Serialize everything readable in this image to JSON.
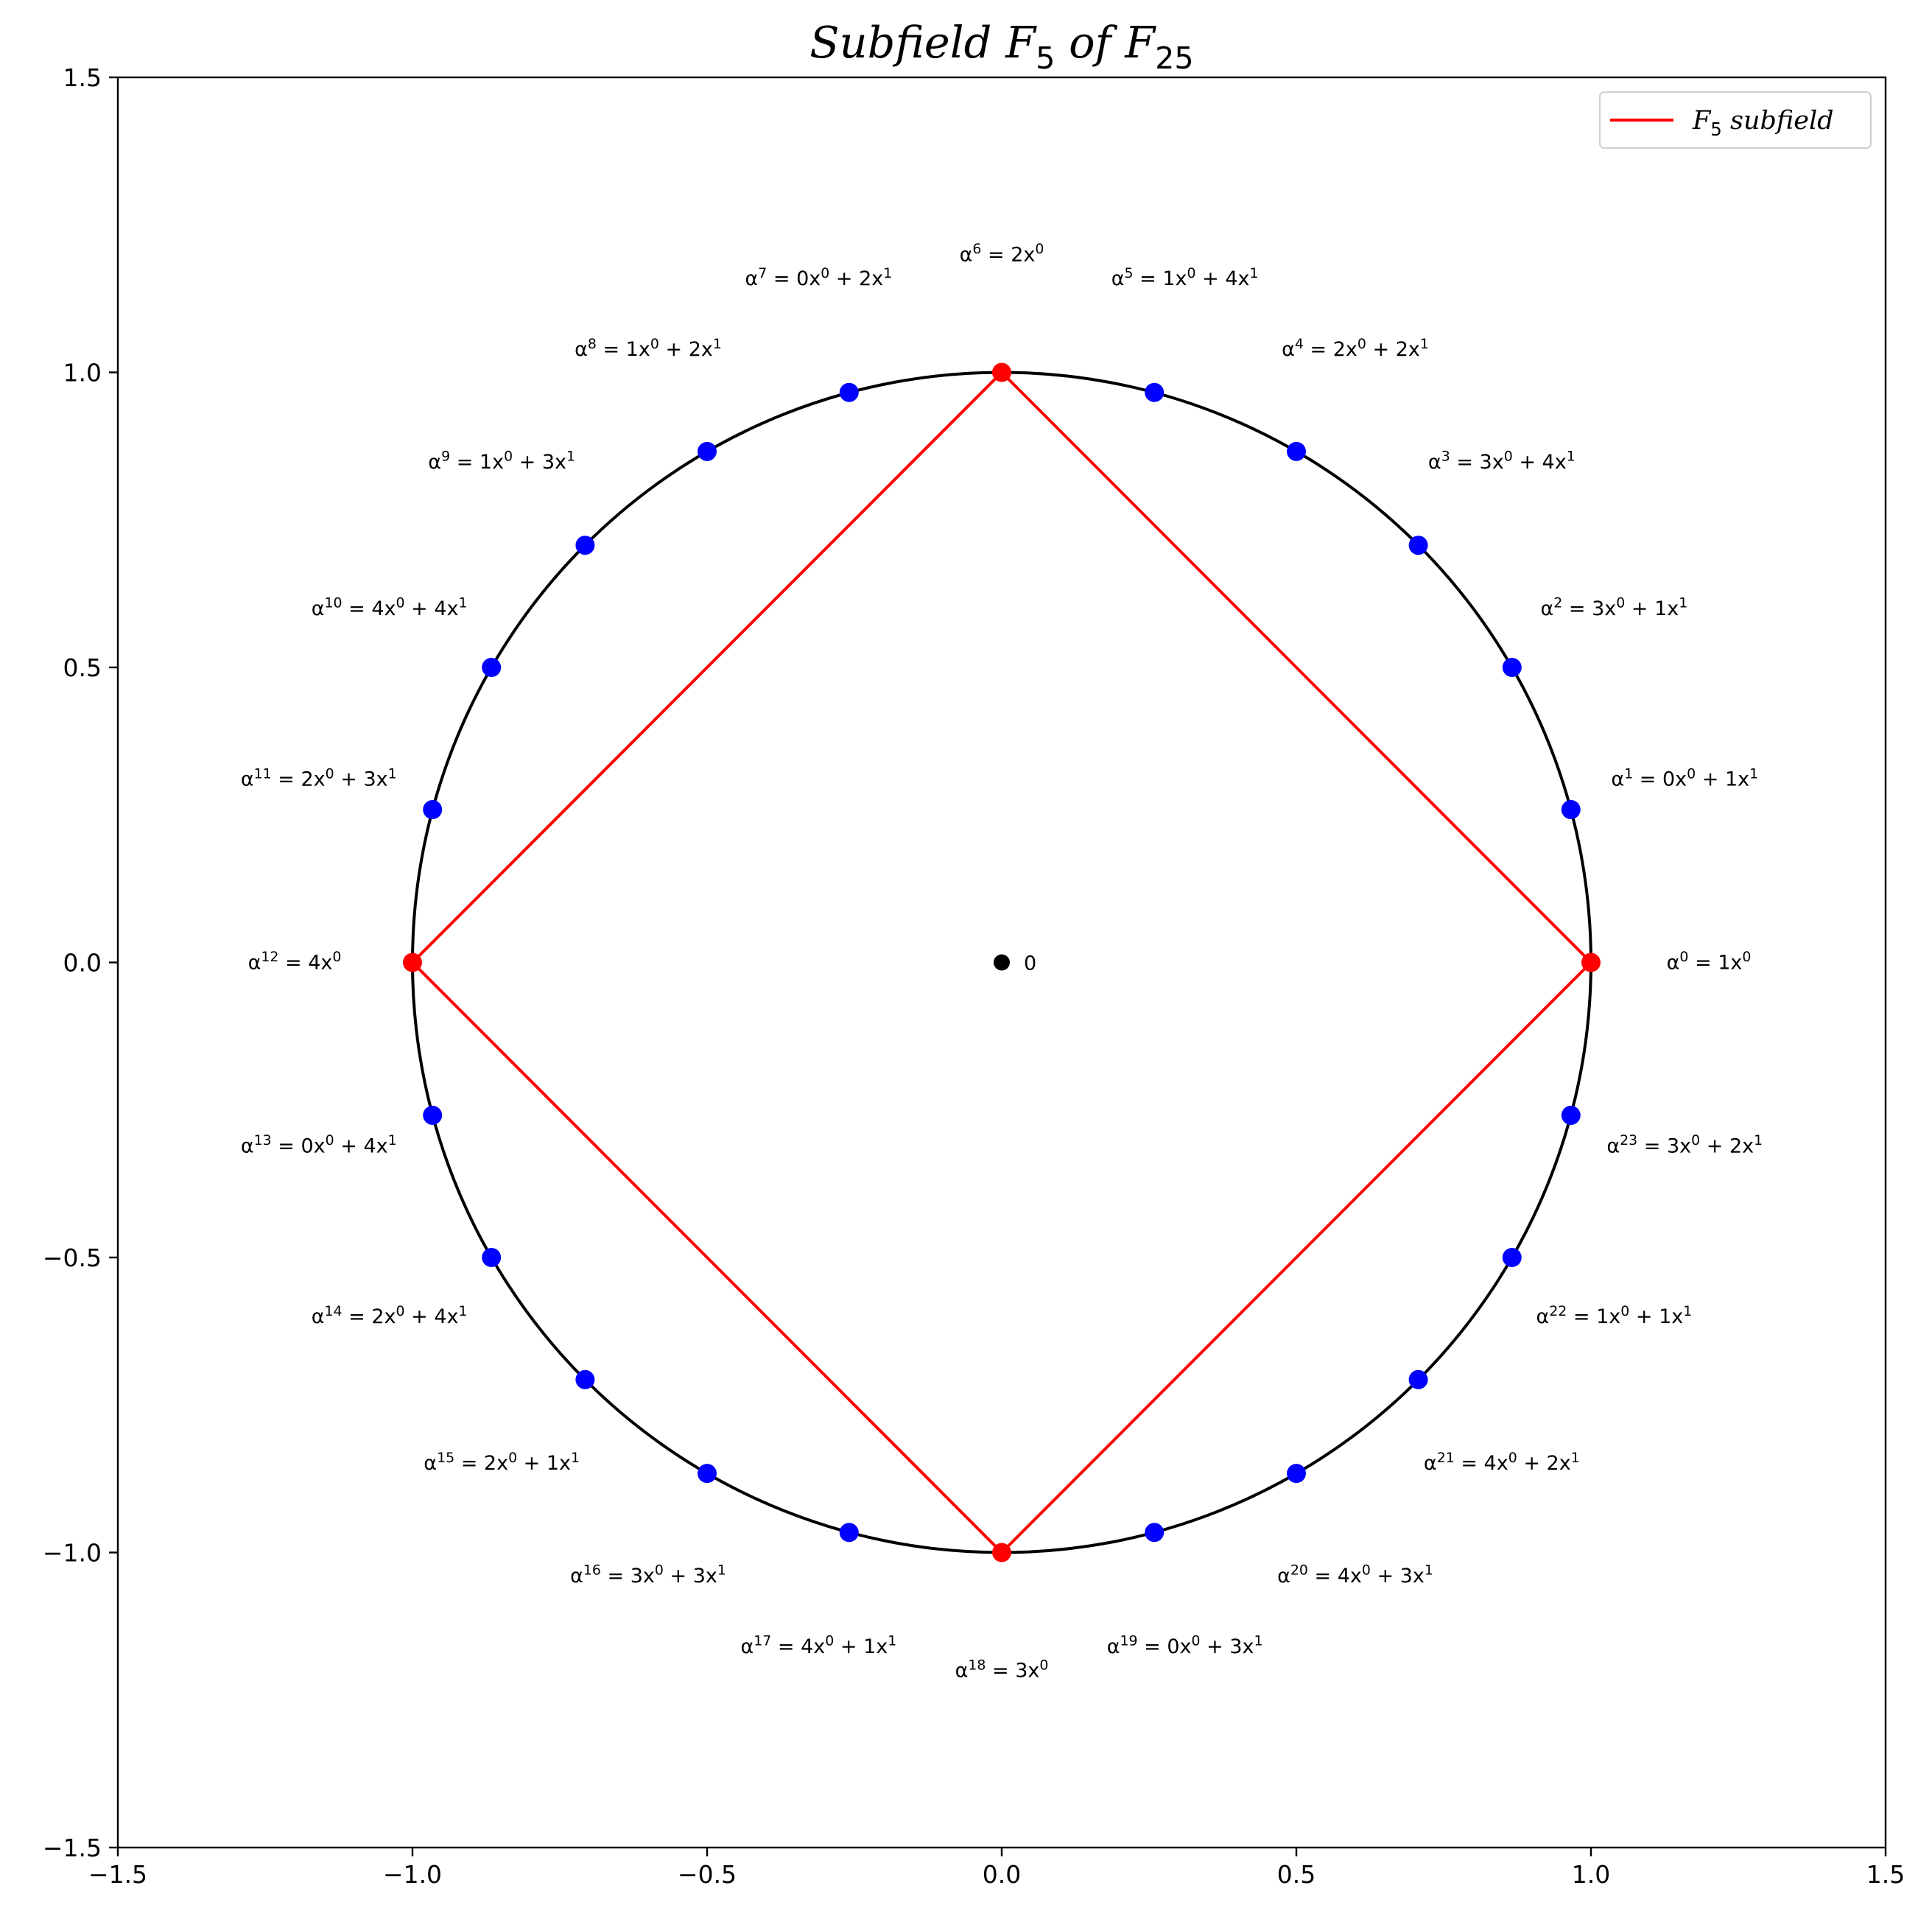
{
  "chart_data": {
    "type": "scatter",
    "title": "Subfield F_5 of F_25",
    "xlim": [
      -1.5,
      1.5
    ],
    "ylim": [
      -1.5,
      1.5
    ],
    "xticks": [
      -1.5,
      -1.0,
      -0.5,
      0.0,
      0.5,
      1.0,
      1.5
    ],
    "yticks": [
      -1.5,
      -1.0,
      -0.5,
      0.0,
      0.5,
      1.0,
      1.5
    ],
    "xtick_labels": [
      "−1.5",
      "−1.0",
      "−0.5",
      "0.0",
      "0.5",
      "1.0",
      "1.5"
    ],
    "ytick_labels": [
      "−1.5",
      "−1.0",
      "−0.5",
      "0.0",
      "0.5",
      "1.0",
      "1.5"
    ],
    "grid": false,
    "legend": {
      "placement": "upper right",
      "entries": [
        {
          "label": "F_5 subfield",
          "color": "#ff0000",
          "kind": "line"
        }
      ]
    },
    "colors": {
      "circle": "#000000",
      "element": "#0000ff",
      "subfield": "#ff0000",
      "zero": "#000000"
    },
    "unit_circle": {
      "radius": 1.0
    },
    "zero_point": {
      "x": 0.0,
      "y": 0.0,
      "label": "0"
    },
    "subfield_polygon": [
      [
        1.0,
        0.0
      ],
      [
        0.0,
        1.0
      ],
      [
        -1.0,
        0.0
      ],
      [
        0.0,
        -1.0
      ]
    ],
    "elements": [
      {
        "k": 0,
        "x": 1.0,
        "y": 0.0,
        "expr": "1x^0",
        "subfield": true
      },
      {
        "k": 1,
        "x": 0.966,
        "y": 0.259,
        "expr": "0x^0 + 1x^1",
        "subfield": false
      },
      {
        "k": 2,
        "x": 0.866,
        "y": 0.5,
        "expr": "3x^0 + 1x^1",
        "subfield": false
      },
      {
        "k": 3,
        "x": 0.707,
        "y": 0.707,
        "expr": "3x^0 + 4x^1",
        "subfield": false
      },
      {
        "k": 4,
        "x": 0.5,
        "y": 0.866,
        "expr": "2x^0 + 2x^1",
        "subfield": false
      },
      {
        "k": 5,
        "x": 0.259,
        "y": 0.966,
        "expr": "1x^0 + 4x^1",
        "subfield": false
      },
      {
        "k": 6,
        "x": 0.0,
        "y": 1.0,
        "expr": "2x^0",
        "subfield": true
      },
      {
        "k": 7,
        "x": -0.259,
        "y": 0.966,
        "expr": "0x^0 + 2x^1",
        "subfield": false
      },
      {
        "k": 8,
        "x": -0.5,
        "y": 0.866,
        "expr": "1x^0 + 2x^1",
        "subfield": false
      },
      {
        "k": 9,
        "x": -0.707,
        "y": 0.707,
        "expr": "1x^0 + 3x^1",
        "subfield": false
      },
      {
        "k": 10,
        "x": -0.866,
        "y": 0.5,
        "expr": "4x^0 + 4x^1",
        "subfield": false
      },
      {
        "k": 11,
        "x": -0.966,
        "y": 0.259,
        "expr": "2x^0 + 3x^1",
        "subfield": false
      },
      {
        "k": 12,
        "x": -1.0,
        "y": 0.0,
        "expr": "4x^0",
        "subfield": true
      },
      {
        "k": 13,
        "x": -0.966,
        "y": -0.259,
        "expr": "0x^0 + 4x^1",
        "subfield": false
      },
      {
        "k": 14,
        "x": -0.866,
        "y": -0.5,
        "expr": "2x^0 + 4x^1",
        "subfield": false
      },
      {
        "k": 15,
        "x": -0.707,
        "y": -0.707,
        "expr": "2x^0 + 1x^1",
        "subfield": false
      },
      {
        "k": 16,
        "x": -0.5,
        "y": -0.866,
        "expr": "3x^0 + 3x^1",
        "subfield": false
      },
      {
        "k": 17,
        "x": -0.259,
        "y": -0.966,
        "expr": "4x^0 + 1x^1",
        "subfield": false
      },
      {
        "k": 18,
        "x": 0.0,
        "y": -1.0,
        "expr": "3x^0",
        "subfield": true
      },
      {
        "k": 19,
        "x": 0.259,
        "y": -0.966,
        "expr": "0x^0 + 3x^1",
        "subfield": false
      },
      {
        "k": 20,
        "x": 0.5,
        "y": -0.866,
        "expr": "4x^0 + 3x^1",
        "subfield": false
      },
      {
        "k": 21,
        "x": 0.707,
        "y": -0.707,
        "expr": "4x^0 + 2x^1",
        "subfield": false
      },
      {
        "k": 22,
        "x": 0.866,
        "y": -0.5,
        "expr": "1x^0 + 1x^1",
        "subfield": false
      },
      {
        "k": 23,
        "x": 0.966,
        "y": -0.259,
        "expr": "3x^0 + 2x^1",
        "subfield": false
      }
    ]
  }
}
